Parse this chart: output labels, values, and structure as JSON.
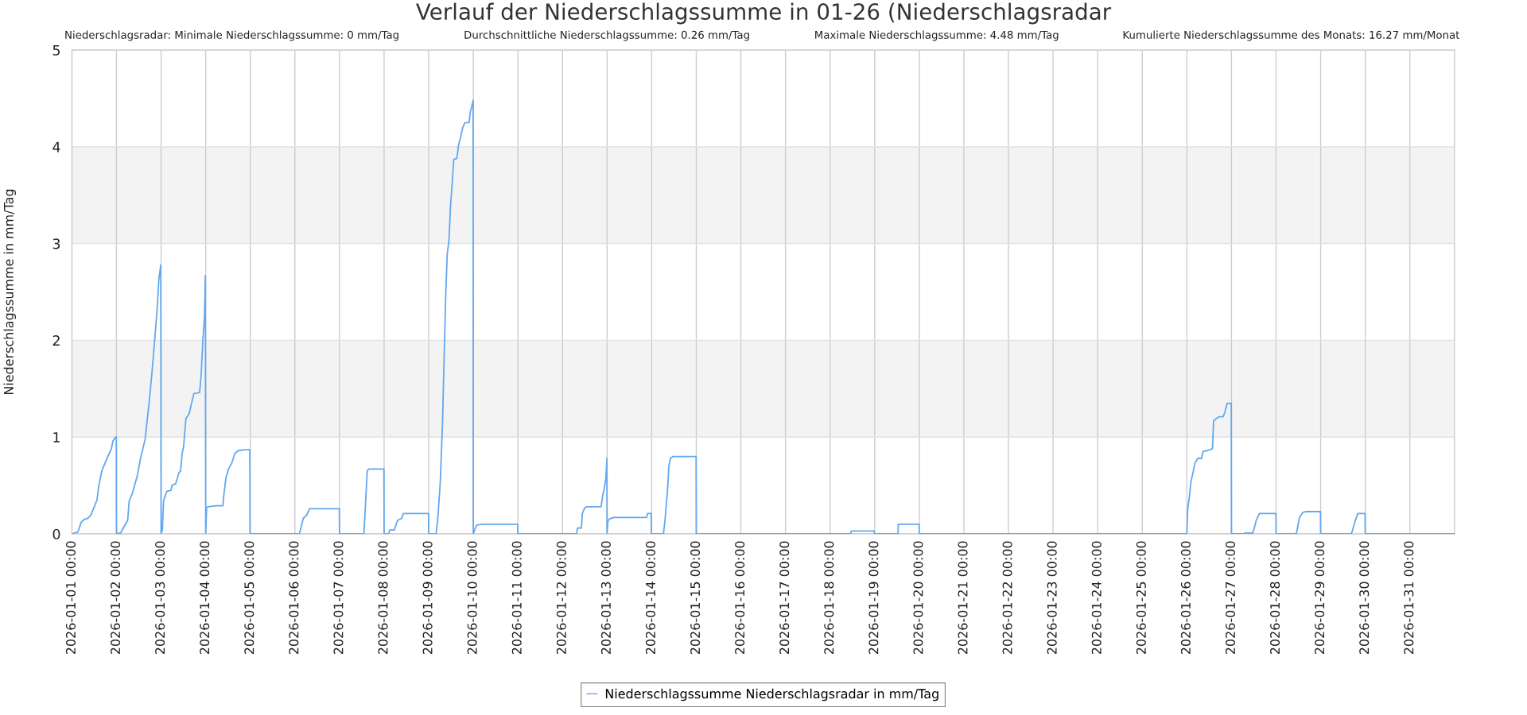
{
  "chart_data": {
    "type": "line",
    "title": "Verlauf der Niederschlagssumme in 01-26 (Niederschlagsradar",
    "annotations": [
      "Niederschlagsradar: Minimale Niederschlagssumme: 0 mm/Tag",
      "Durchschnittliche Niederschlagssumme: 0.26 mm/Tag",
      "Maximale Niederschlagssumme: 4.48 mm/Tag",
      "Kumulierte Niederschlagssumme des Monats: 16.27 mm/Monat"
    ],
    "ylabel": "Niederschlagssumme in mm/Tag",
    "series": [
      {
        "name": "Niederschlagssumme Niederschlagsradar in mm/Tag",
        "color": "#62a8f0",
        "x": [
          "2026-01-01T00:00",
          "2026-01-01T03:15",
          "2026-01-01T05:00",
          "2026-01-01T06:40",
          "2026-01-01T08:25",
          "2026-01-01T10:05",
          "2026-01-01T11:50",
          "2026-01-01T13:30",
          "2026-01-01T14:25",
          "2026-01-01T16:05",
          "2026-01-01T18:40",
          "2026-01-01T21:15",
          "2026-01-01T22:05",
          "2026-01-01T23:30",
          "2026-01-01T23:55",
          "2026-01-02T00:00",
          "2026-01-02T02:15",
          "2026-01-02T04:15",
          "2026-01-02T06:00",
          "2026-01-02T06:50",
          "2026-01-02T08:35",
          "2026-01-02T11:10",
          "2026-01-02T12:50",
          "2026-01-02T15:25",
          "2026-01-02T17:10",
          "2026-01-02T18:00",
          "2026-01-02T19:20",
          "2026-01-02T20:35",
          "2026-01-02T21:55",
          "2026-01-02T22:50",
          "2026-01-02T23:50",
          "2026-01-03T00:00",
          "2026-01-03T00:40",
          "2026-01-03T01:20",
          "2026-01-03T03:05",
          "2026-01-03T05:20",
          "2026-01-03T05:50",
          "2026-01-03T07:55",
          "2026-01-03T09:35",
          "2026-01-03T10:30",
          "2026-01-03T11:20",
          "2026-01-03T12:10",
          "2026-01-03T13:20",
          "2026-01-03T15:05",
          "2026-01-03T16:30",
          "2026-01-03T17:40",
          "2026-01-03T20:45",
          "2026-01-03T21:35",
          "2026-01-03T22:30",
          "2026-01-03T23:20",
          "2026-01-03T23:50",
          "2026-01-04T00:00",
          "2026-01-04T00:30",
          "2026-01-04T01:10",
          "2026-01-04T05:30",
          "2026-01-04T09:15",
          "2026-01-04T09:45",
          "2026-01-04T10:55",
          "2026-01-04T12:15",
          "2026-01-04T14:00",
          "2026-01-04T15:40",
          "2026-01-04T17:25",
          "2026-01-04T20:50",
          "2026-01-04T23:45",
          "2026-01-04T23:50",
          "2026-01-06T02:25",
          "2026-01-06T04:30",
          "2026-01-06T06:15",
          "2026-01-06T07:55",
          "2026-01-06T23:55",
          "2026-01-07T00:00",
          "2026-01-07T13:10",
          "2026-01-07T14:05",
          "2026-01-07T14:55",
          "2026-01-07T15:45",
          "2026-01-07T23:55",
          "2026-01-08T00:00",
          "2026-01-08T02:35",
          "2026-01-08T02:55",
          "2026-01-08T05:30",
          "2026-01-08T07:15",
          "2026-01-08T09:30",
          "2026-01-08T10:20",
          "2026-01-08T23:55",
          "2026-01-09T00:00",
          "2026-01-09T04:00",
          "2026-01-09T04:50",
          "2026-01-09T06:15",
          "2026-01-09T07:25",
          "2026-01-09T08:15",
          "2026-01-09T09:10",
          "2026-01-09T10:00",
          "2026-01-09T10:55",
          "2026-01-09T11:45",
          "2026-01-09T12:35",
          "2026-01-09T13:30",
          "2026-01-09T15:10",
          "2026-01-09T16:05",
          "2026-01-09T16:55",
          "2026-01-09T18:20",
          "2026-01-09T19:30",
          "2026-01-09T21:45",
          "2026-01-09T22:25",
          "2026-01-09T23:55",
          "2026-01-10T00:00",
          "2026-01-10T01:45",
          "2026-01-10T04:40",
          "2026-01-10T23:55",
          "2026-01-11T00:00",
          "2026-01-12T07:35",
          "2026-01-12T08:05",
          "2026-01-12T10:10",
          "2026-01-12T10:40",
          "2026-01-12T12:00",
          "2026-01-12T13:10",
          "2026-01-12T20:45",
          "2026-01-12T21:40",
          "2026-01-12T22:30",
          "2026-01-12T23:20",
          "2026-01-12T23:55",
          "2026-01-13T00:00",
          "2026-01-13T00:30",
          "2026-01-13T01:55",
          "2026-01-13T03:40",
          "2026-01-13T21:15",
          "2026-01-13T21:45",
          "2026-01-13T23:45",
          "2026-01-13T23:50",
          "2026-01-14T06:20",
          "2026-01-14T07:10",
          "2026-01-14T08:35",
          "2026-01-14T09:15",
          "2026-01-14T10:05",
          "2026-01-14T11:30",
          "2026-01-14T23:55",
          "2026-01-15T00:00",
          "2026-01-18T11:00",
          "2026-01-18T11:25",
          "2026-01-18T23:45",
          "2026-01-18T23:50",
          "2026-01-19T12:35",
          "2026-01-19T12:40",
          "2026-01-19T23:55",
          "2026-01-20T00:00",
          "2026-01-26T00:00",
          "2026-01-26T00:25",
          "2026-01-26T01:25",
          "2026-01-26T02:10",
          "2026-01-26T03:10",
          "2026-01-26T04:20",
          "2026-01-26T05:50",
          "2026-01-26T07:55",
          "2026-01-26T08:40",
          "2026-01-26T10:50",
          "2026-01-26T13:45",
          "2026-01-26T14:25",
          "2026-01-26T15:10",
          "2026-01-26T17:05",
          "2026-01-26T19:30",
          "2026-01-26T20:30",
          "2026-01-26T21:40",
          "2026-01-26T23:55",
          "2026-01-27T00:00",
          "2026-01-27T06:20",
          "2026-01-27T07:15",
          "2026-01-27T11:35",
          "2026-01-27T13:20",
          "2026-01-27T15:00",
          "2026-01-27T23:55",
          "2026-01-28T00:00",
          "2026-01-28T10:55",
          "2026-01-28T12:35",
          "2026-01-28T14:20",
          "2026-01-28T16:05",
          "2026-01-28T23:55",
          "2026-01-29T00:00",
          "2026-01-29T16:35",
          "2026-01-29T18:20",
          "2026-01-29T20:00",
          "2026-01-29T23:55",
          "2026-01-30T00:00",
          "2026-02-01T00:00"
        ],
        "values": [
          0,
          0.02,
          0.12,
          0.15,
          0.16,
          0.19,
          0.27,
          0.35,
          0.49,
          0.65,
          0.77,
          0.88,
          0.96,
          1.0,
          1.0,
          0,
          0.01,
          0.08,
          0.14,
          0.34,
          0.42,
          0.6,
          0.77,
          0.98,
          1.29,
          1.44,
          1.72,
          2.01,
          2.34,
          2.64,
          2.78,
          0,
          0.04,
          0.34,
          0.44,
          0.45,
          0.5,
          0.52,
          0.63,
          0.65,
          0.83,
          0.91,
          1.19,
          1.24,
          1.36,
          1.45,
          1.46,
          1.65,
          2.01,
          2.24,
          2.67,
          0,
          0.27,
          0.28,
          0.29,
          0.29,
          0.4,
          0.58,
          0.67,
          0.73,
          0.83,
          0.86,
          0.87,
          0.87,
          0,
          0,
          0.16,
          0.19,
          0.26,
          0.26,
          0,
          0,
          0.34,
          0.65,
          0.67,
          0.67,
          0,
          0,
          0.04,
          0.04,
          0.14,
          0.16,
          0.21,
          0.21,
          0,
          0,
          0.14,
          0.54,
          1.13,
          1.78,
          2.47,
          2.9,
          3.03,
          3.39,
          3.61,
          3.87,
          3.88,
          4.02,
          4.08,
          4.2,
          4.25,
          4.25,
          4.36,
          4.48,
          0,
          0.09,
          0.1,
          0.1,
          0,
          0,
          0.06,
          0.06,
          0.21,
          0.27,
          0.28,
          0.28,
          0.4,
          0.47,
          0.57,
          0.78,
          0,
          0.14,
          0.16,
          0.17,
          0.17,
          0.21,
          0.21,
          0,
          0,
          0.14,
          0.47,
          0.7,
          0.78,
          0.8,
          0.8,
          0,
          0,
          0.03,
          0.03,
          0,
          0,
          0.1,
          0.1,
          0,
          0,
          0.25,
          0.39,
          0.54,
          0.62,
          0.73,
          0.78,
          0.78,
          0.85,
          0.86,
          0.88,
          1.17,
          1.18,
          1.21,
          1.21,
          1.26,
          1.35,
          1.35,
          0,
          0,
          0.01,
          0.01,
          0.14,
          0.21,
          0.21,
          0,
          0,
          0.17,
          0.22,
          0.23,
          0.23,
          0,
          0,
          0.12,
          0.21,
          0.21,
          0,
          0
        ]
      }
    ],
    "xlim": [
      "2026-01-01T00:00",
      "2026-02-01T00:00"
    ],
    "xticks": [
      {
        "value": "2026-01-01",
        "label": "2026-01-01 00:00"
      },
      {
        "value": "2026-01-02",
        "label": "2026-01-02 00:00"
      },
      {
        "value": "2026-01-03",
        "label": "2026-01-03 00:00"
      },
      {
        "value": "2026-01-04",
        "label": "2026-01-04 00:00"
      },
      {
        "value": "2026-01-05",
        "label": "2026-01-05 00:00"
      },
      {
        "value": "2026-01-06",
        "label": "2026-01-06 00:00"
      },
      {
        "value": "2026-01-07",
        "label": "2026-01-07 00:00"
      },
      {
        "value": "2026-01-08",
        "label": "2026-01-08 00:00"
      },
      {
        "value": "2026-01-09",
        "label": "2026-01-09 00:00"
      },
      {
        "value": "2026-01-10",
        "label": "2026-01-10 00:00"
      },
      {
        "value": "2026-01-11",
        "label": "2026-01-11 00:00"
      },
      {
        "value": "2026-01-12",
        "label": "2026-01-12 00:00"
      },
      {
        "value": "2026-01-13",
        "label": "2026-01-13 00:00"
      },
      {
        "value": "2026-01-14",
        "label": "2026-01-14 00:00"
      },
      {
        "value": "2026-01-15",
        "label": "2026-01-15 00:00"
      },
      {
        "value": "2026-01-16",
        "label": "2026-01-16 00:00"
      },
      {
        "value": "2026-01-17",
        "label": "2026-01-17 00:00"
      },
      {
        "value": "2026-01-18",
        "label": "2026-01-18 00:00"
      },
      {
        "value": "2026-01-19",
        "label": "2026-01-19 00:00"
      },
      {
        "value": "2026-01-20",
        "label": "2026-01-20 00:00"
      },
      {
        "value": "2026-01-21",
        "label": "2026-01-21 00:00"
      },
      {
        "value": "2026-01-22",
        "label": "2026-01-22 00:00"
      },
      {
        "value": "2026-01-23",
        "label": "2026-01-23 00:00"
      },
      {
        "value": "2026-01-24",
        "label": "2026-01-24 00:00"
      },
      {
        "value": "2026-01-25",
        "label": "2026-01-25 00:00"
      },
      {
        "value": "2026-01-26",
        "label": "2026-01-26 00:00"
      },
      {
        "value": "2026-01-27",
        "label": "2026-01-27 00:00"
      },
      {
        "value": "2026-01-28",
        "label": "2026-01-28 00:00"
      },
      {
        "value": "2026-01-29",
        "label": "2026-01-29 00:00"
      },
      {
        "value": "2026-01-30",
        "label": "2026-01-30 00:00"
      },
      {
        "value": "2026-01-31",
        "label": "2026-01-31 00:00"
      }
    ],
    "ylim": [
      0,
      5
    ],
    "yticks": [
      0,
      1,
      2,
      3,
      4,
      5
    ],
    "bands": [
      {
        "axis": "y",
        "from": 1,
        "to": 2,
        "color": "#f3f3f3"
      },
      {
        "axis": "y",
        "from": 3,
        "to": 4,
        "color": "#f3f3f3"
      }
    ],
    "grid": true,
    "legend": "bottom"
  }
}
